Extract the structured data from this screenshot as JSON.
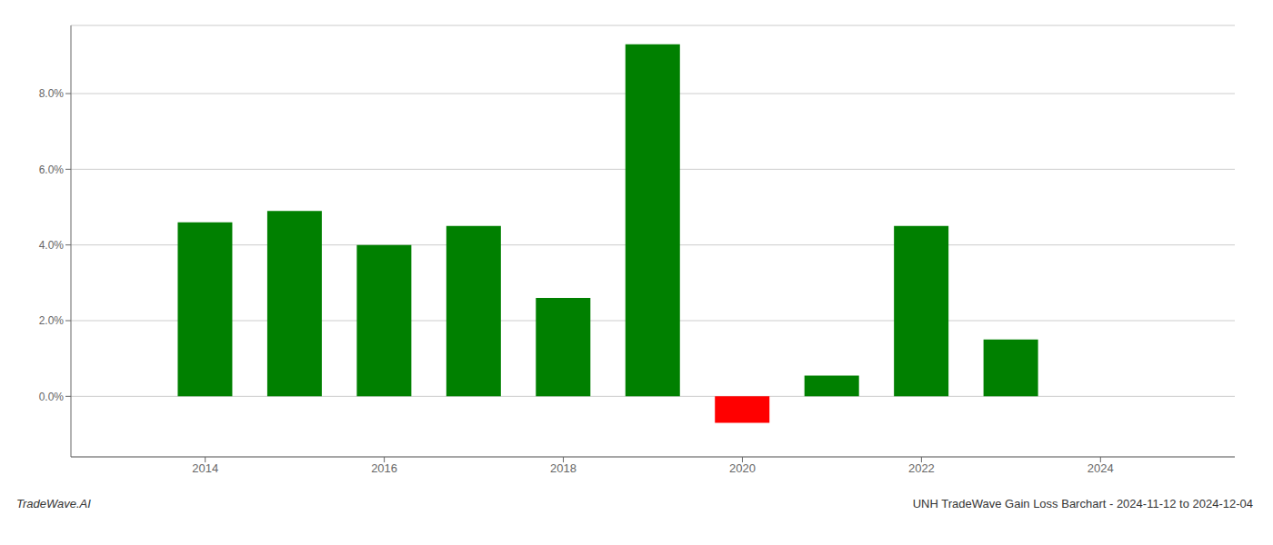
{
  "chart_data": {
    "type": "bar",
    "x": [
      2014,
      2015,
      2016,
      2017,
      2018,
      2019,
      2020,
      2021,
      2022,
      2023
    ],
    "values": [
      0.046,
      0.049,
      0.04,
      0.045,
      0.026,
      0.093,
      -0.007,
      0.0055,
      0.045,
      0.015
    ],
    "colors": [
      "#008000",
      "#008000",
      "#008000",
      "#008000",
      "#008000",
      "#008000",
      "#ff0000",
      "#008000",
      "#008000",
      "#008000"
    ],
    "xlim": [
      2012.5,
      2025.5
    ],
    "xticks": [
      2014,
      2016,
      2018,
      2020,
      2022,
      2024
    ],
    "ylim": [
      -0.016,
      0.098
    ],
    "yticks": [
      {
        "value": 0.0,
        "label": "0.0%"
      },
      {
        "value": 0.02,
        "label": "2.0%"
      },
      {
        "value": 0.04,
        "label": "4.0%"
      },
      {
        "value": 0.06,
        "label": "6.0%"
      },
      {
        "value": 0.08,
        "label": "8.0%"
      }
    ],
    "grid": true,
    "annotations": [
      "TradeWave.AI",
      "UNH TradeWave Gain Loss Barchart - 2024-11-12 to 2024-12-04"
    ]
  }
}
